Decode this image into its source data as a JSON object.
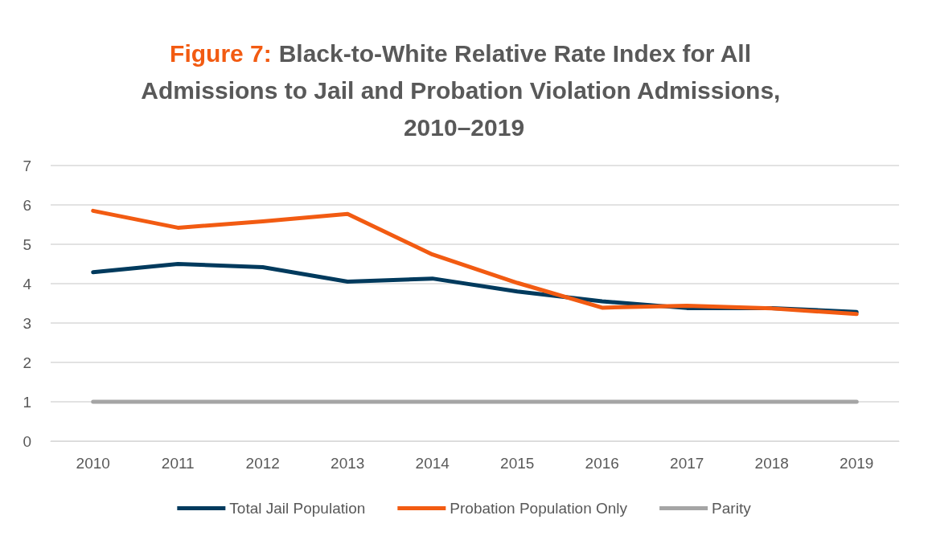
{
  "chart_data": {
    "type": "line",
    "title": "Figure 7: Black-to-White Relative Rate Index for All Admissions to Jail and Probation Violation Admissions, 2010–2019",
    "categories": [
      "2010",
      "2011",
      "2012",
      "2013",
      "2014",
      "2015",
      "2016",
      "2017",
      "2018",
      "2019"
    ],
    "series": [
      {
        "name": "Total Jail Population",
        "color": "#003a5d",
        "values": [
          4.29,
          4.5,
          4.42,
          4.05,
          4.13,
          3.8,
          3.55,
          3.38,
          3.38,
          3.28
        ]
      },
      {
        "name": "Probation Population Only",
        "color": "#f25b12",
        "values": [
          5.85,
          5.42,
          5.58,
          5.77,
          4.74,
          4.02,
          3.39,
          3.44,
          3.37,
          3.23
        ]
      },
      {
        "name": "Parity",
        "color": "#a5a5a5",
        "values": [
          1,
          1,
          1,
          1,
          1,
          1,
          1,
          1,
          1,
          1
        ]
      }
    ],
    "ylim": [
      0,
      7
    ],
    "yticks": [
      0,
      1,
      2,
      3,
      4,
      5,
      6,
      7
    ],
    "grid": "y",
    "legend": "bottom",
    "marker": "none",
    "line_style": "solid"
  }
}
